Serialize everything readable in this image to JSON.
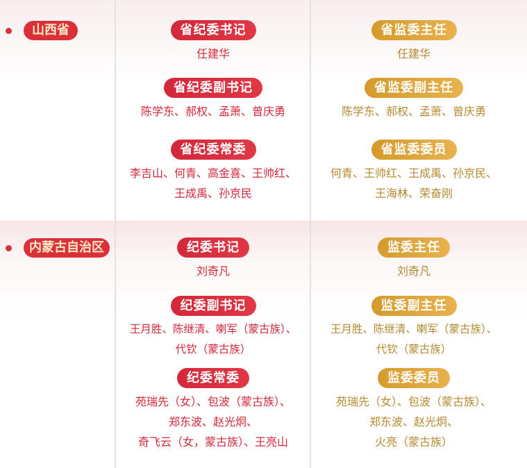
{
  "sections": [
    {
      "province": "山西省",
      "left": [
        {
          "title": "省纪委书记",
          "names": [
            "任建华"
          ]
        },
        {
          "title": "省纪委副书记",
          "names": [
            "陈学东、郝权、孟萧、曾庆勇"
          ]
        },
        {
          "title": "省纪委常委",
          "names": [
            "李吉山、何青、高金喜、王帅红、",
            "王成禹、孙京民"
          ]
        }
      ],
      "right": [
        {
          "title": "省监委主任",
          "names": [
            "任建华"
          ]
        },
        {
          "title": "省监委副主任",
          "names": [
            "陈学东、郝权、孟萧、曾庆勇"
          ]
        },
        {
          "title": "省监委委员",
          "names": [
            "何青、王帅红、王成禹、孙京民、",
            "王海林、荣奋刚"
          ]
        }
      ]
    },
    {
      "province": "内蒙古自治区",
      "left": [
        {
          "title": "纪委书记",
          "names": [
            "刘奇凡"
          ]
        },
        {
          "title": "纪委副书记",
          "names": [
            "王月胜、陈继清、喇军（蒙古族）、",
            "代钦（蒙古族）"
          ]
        },
        {
          "title": "纪委常委",
          "names": [
            "苑瑞先（女）、包波（蒙古族）、",
            "郑东波、赵光炯、",
            "奇飞云（女，蒙古族）、王亮山"
          ]
        }
      ],
      "right": [
        {
          "title": "监委主任",
          "names": [
            "刘奇凡"
          ]
        },
        {
          "title": "监委副主任",
          "names": [
            "王月胜、陈继清、喇军（蒙古族）、",
            "代钦（蒙古族）"
          ]
        },
        {
          "title": "监委委员",
          "names": [
            "苑瑞先（女）、包波（蒙古族）、",
            "郑东波、赵光炯、",
            "火亮（蒙古族）"
          ]
        }
      ]
    }
  ],
  "colors": {
    "red": "#d9303a",
    "gold": "#e0a640",
    "gold_text": "#b48a32"
  }
}
